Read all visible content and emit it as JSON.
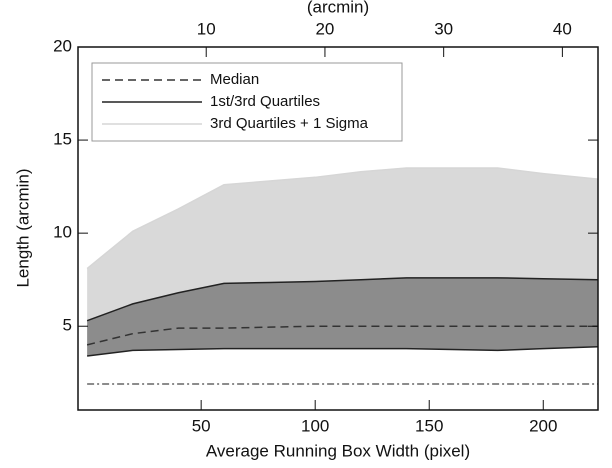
{
  "chart_data": {
    "type": "area-band",
    "xlabel": "Average Running Box Width (pixel)",
    "ylabel": "Length (arcmin)",
    "x2label": "(arcmin)",
    "x": [
      0,
      20,
      40,
      60,
      80,
      100,
      120,
      140,
      160,
      180,
      200,
      224
    ],
    "xlim": [
      -4,
      224
    ],
    "xticks": [
      50,
      100,
      150,
      200
    ],
    "x2lim": [
      -0.8,
      43
    ],
    "x2ticks": [
      10,
      20,
      30,
      40
    ],
    "ylim": [
      0.5,
      20
    ],
    "yticks": [
      5,
      10,
      15,
      20
    ],
    "legend": "upper-left",
    "series": [
      {
        "name": "3rd Quartiles + 1 Sigma",
        "color": "#d6d6d6",
        "fill": "#d9d9d9",
        "style": "solid",
        "values": [
          8.1,
          10.1,
          11.3,
          12.6,
          12.8,
          13.0,
          13.3,
          13.5,
          13.5,
          13.5,
          13.2,
          12.9
        ]
      },
      {
        "name": "1st/3rd Quartiles",
        "color": "#222222",
        "fill": "#8c8c8c",
        "style": "solid",
        "values": [
          5.3,
          6.2,
          6.8,
          7.3,
          7.35,
          7.4,
          7.5,
          7.6,
          7.6,
          7.6,
          7.55,
          7.5
        ],
        "values_low": [
          3.4,
          3.7,
          3.75,
          3.8,
          3.8,
          3.8,
          3.8,
          3.8,
          3.75,
          3.7,
          3.8,
          3.9
        ]
      },
      {
        "name": "Median",
        "color": "#333333",
        "style": "dashed",
        "values": [
          4.0,
          4.6,
          4.9,
          4.9,
          4.95,
          5.0,
          5.0,
          5.0,
          5.0,
          5.0,
          5.0,
          5.0
        ]
      },
      {
        "color": "#666666",
        "style": "dashdot",
        "values": [
          1.9,
          1.9,
          1.9,
          1.9,
          1.9,
          1.9,
          1.9,
          1.9,
          1.9,
          1.9,
          1.9,
          1.9
        ]
      }
    ]
  }
}
